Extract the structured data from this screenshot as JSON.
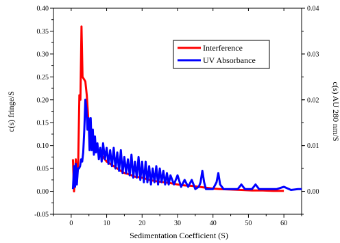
{
  "chart_data": {
    "type": "line",
    "title": "",
    "xlabel": "Sedimentation Coefficient (S)",
    "ylabel": "c(s) fringe/S",
    "y2label": "c(s) AU 280 nm/S",
    "xlim": [
      -5,
      65
    ],
    "ylim": [
      -0.05,
      0.4
    ],
    "y2lim": [
      -0.005,
      0.04
    ],
    "xticks": [
      0,
      10,
      20,
      30,
      40,
      50,
      60
    ],
    "yticks": [
      -0.05,
      0.0,
      0.05,
      0.1,
      0.15,
      0.2,
      0.25,
      0.3,
      0.35,
      0.4
    ],
    "y2ticks": [
      0.0,
      0.01,
      0.02,
      0.03,
      0.04
    ],
    "xtick_labels": [
      "0",
      "10",
      "20",
      "30",
      "40",
      "50",
      "60"
    ],
    "ytick_labels": [
      "-0.05",
      "0.00",
      "0.05",
      "0.10",
      "0.15",
      "0.20",
      "0.25",
      "0.30",
      "0.35",
      "0.40"
    ],
    "y2tick_labels": [
      "0.00",
      "0.01",
      "0.02",
      "0.03",
      "0.04"
    ],
    "legend_position": "top-right",
    "grid": false,
    "series": [
      {
        "name": "Interference",
        "axis": "left",
        "color": "#ff0000",
        "x": [
          0.5,
          0.8,
          1.0,
          1.3,
          1.6,
          2.0,
          2.3,
          2.6,
          2.9,
          3.2,
          3.6,
          4.0,
          4.4,
          4.8,
          5.2,
          5.6,
          6.0,
          6.5,
          7.0,
          7.5,
          8.0,
          9,
          10,
          11,
          12,
          13,
          14,
          15,
          16,
          17,
          18,
          20,
          22,
          24,
          26,
          28,
          30,
          32,
          34,
          36,
          38,
          40,
          42,
          45,
          48,
          51,
          54,
          57,
          60
        ],
        "y": [
          0.07,
          0.0,
          0.02,
          0.07,
          0.02,
          0.07,
          0.21,
          0.2,
          0.36,
          0.25,
          0.245,
          0.24,
          0.21,
          0.16,
          0.12,
          0.11,
          0.1,
          0.09,
          0.1,
          0.09,
          0.08,
          0.075,
          0.065,
          0.06,
          0.055,
          0.05,
          0.045,
          0.04,
          0.038,
          0.035,
          0.032,
          0.03,
          0.025,
          0.022,
          0.02,
          0.018,
          0.015,
          0.013,
          0.012,
          0.01,
          0.008,
          0.006,
          0.005,
          0.004,
          0.003,
          0.002,
          0.002,
          0.001,
          0.001
        ]
      },
      {
        "name": "UV Absorbance",
        "axis": "right",
        "color": "#0000ff",
        "x": [
          0.5,
          0.8,
          1.1,
          1.3,
          1.6,
          1.9,
          2.2,
          2.5,
          2.8,
          3.1,
          3.4,
          3.7,
          4.0,
          4.3,
          4.6,
          4.9,
          5.2,
          5.5,
          5.8,
          6.1,
          6.4,
          6.7,
          7.0,
          7.4,
          7.8,
          8.2,
          8.6,
          9.0,
          9.5,
          10.0,
          10.5,
          11.0,
          11.5,
          12.0,
          12.5,
          13.0,
          13.5,
          14.0,
          14.5,
          15.0,
          15.5,
          16,
          16.5,
          17,
          17.5,
          18,
          18.5,
          19,
          19.5,
          20,
          20.5,
          21,
          21.5,
          22,
          22.5,
          23,
          23.5,
          24,
          24.5,
          25,
          25.5,
          26,
          26.5,
          27,
          27.5,
          28,
          29,
          30,
          31,
          32,
          33,
          34,
          35,
          36,
          36.5,
          37,
          37.5,
          38,
          39,
          40,
          41,
          41.5,
          42,
          43,
          44,
          45,
          46,
          47,
          48,
          49,
          50,
          51,
          52,
          53,
          54,
          56,
          58,
          60,
          62,
          64,
          65
        ],
        "y": [
          0.0005,
          0.0055,
          0.001,
          0.006,
          0.0015,
          0.005,
          0.005,
          0.0055,
          0.007,
          0.0065,
          0.0085,
          0.0135,
          0.02,
          0.018,
          0.0135,
          0.016,
          0.009,
          0.016,
          0.009,
          0.0135,
          0.008,
          0.012,
          0.0085,
          0.0105,
          0.007,
          0.0095,
          0.0065,
          0.0105,
          0.007,
          0.0095,
          0.006,
          0.009,
          0.0055,
          0.0095,
          0.005,
          0.0085,
          0.0045,
          0.009,
          0.004,
          0.0075,
          0.004,
          0.007,
          0.0035,
          0.008,
          0.003,
          0.0065,
          0.003,
          0.0075,
          0.0025,
          0.0065,
          0.002,
          0.0065,
          0.002,
          0.0055,
          0.0015,
          0.005,
          0.002,
          0.0055,
          0.0015,
          0.005,
          0.002,
          0.0045,
          0.0015,
          0.004,
          0.0015,
          0.0035,
          0.0015,
          0.0035,
          0.001,
          0.0025,
          0.001,
          0.0025,
          0.0005,
          0.001,
          0.002,
          0.0045,
          0.002,
          0.0005,
          0.0005,
          0.0005,
          0.002,
          0.004,
          0.0015,
          0.0005,
          0.0005,
          0.0005,
          0.0005,
          0.0005,
          0.0015,
          0.0005,
          0.0005,
          0.0005,
          0.0015,
          0.0005,
          0.0005,
          0.0005,
          0.0005,
          0.001,
          0.0003,
          0.0005,
          0.0005
        ]
      }
    ]
  }
}
